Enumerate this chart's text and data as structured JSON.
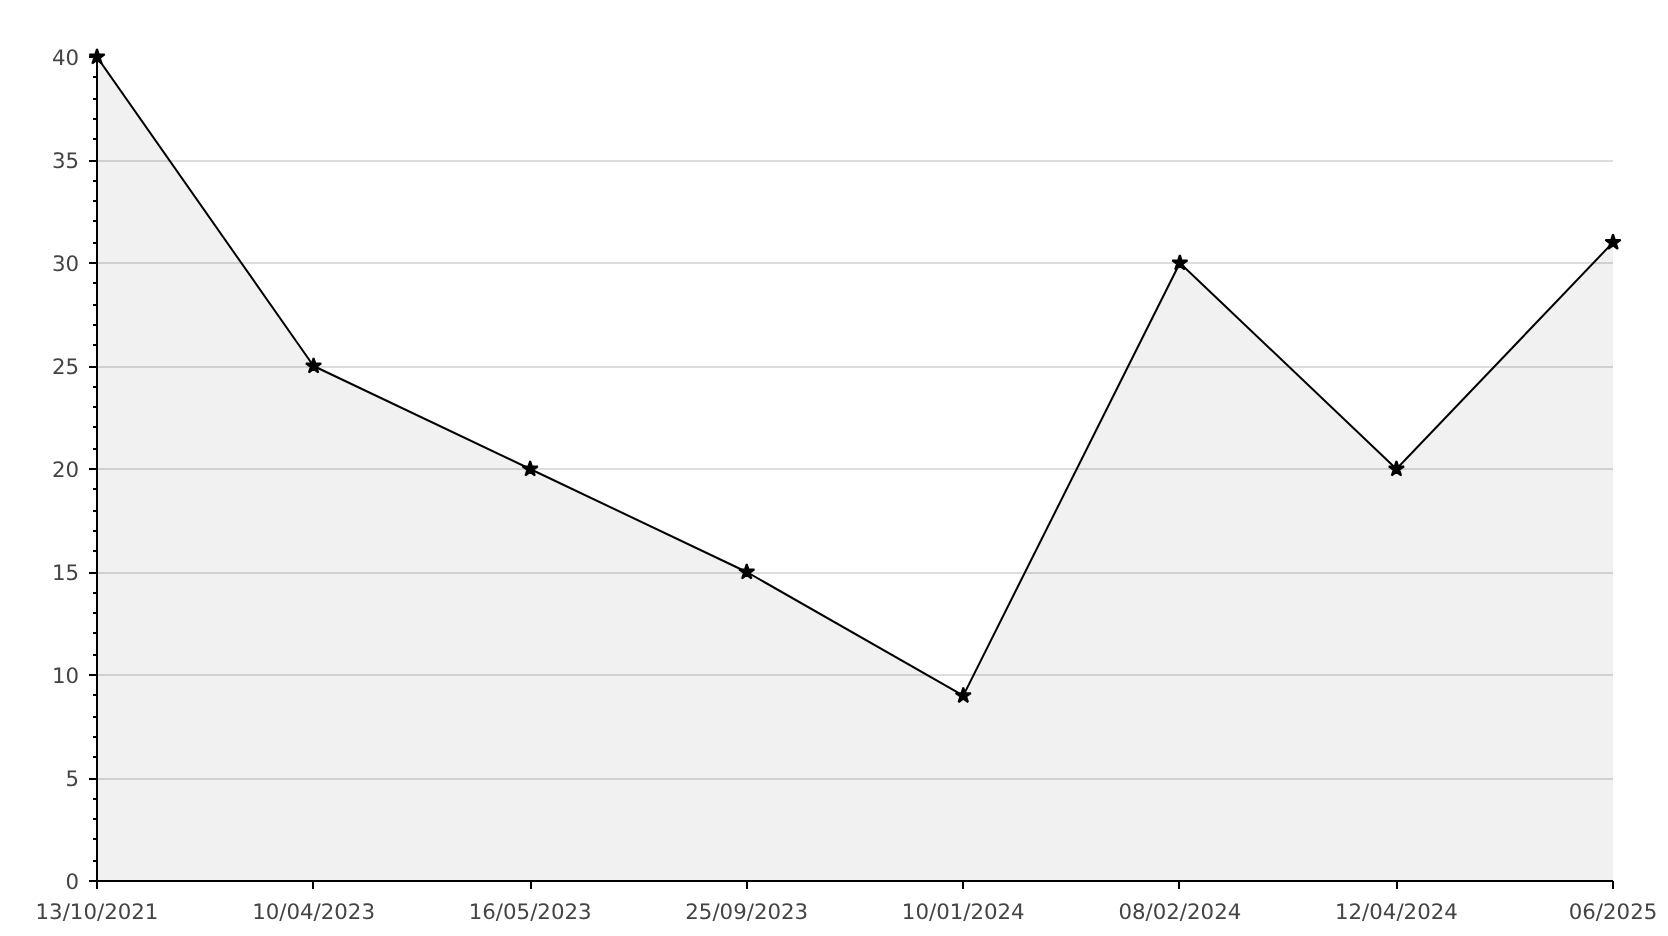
{
  "chart_data": {
    "type": "area",
    "categories": [
      "13/10/2021",
      "10/04/2023",
      "16/05/2023",
      "25/09/2023",
      "10/01/2024",
      "08/02/2024",
      "12/04/2024",
      "06/2025"
    ],
    "series": [
      {
        "color": "#000000",
        "values": [
          40,
          25,
          20,
          15,
          9,
          30,
          20,
          31
        ]
      }
    ],
    "ylim": [
      0,
      40
    ],
    "yticks": [
      0,
      5,
      10,
      15,
      20,
      25,
      30,
      35,
      40
    ],
    "grid": "y",
    "marker": "star",
    "line_style": "solid"
  }
}
